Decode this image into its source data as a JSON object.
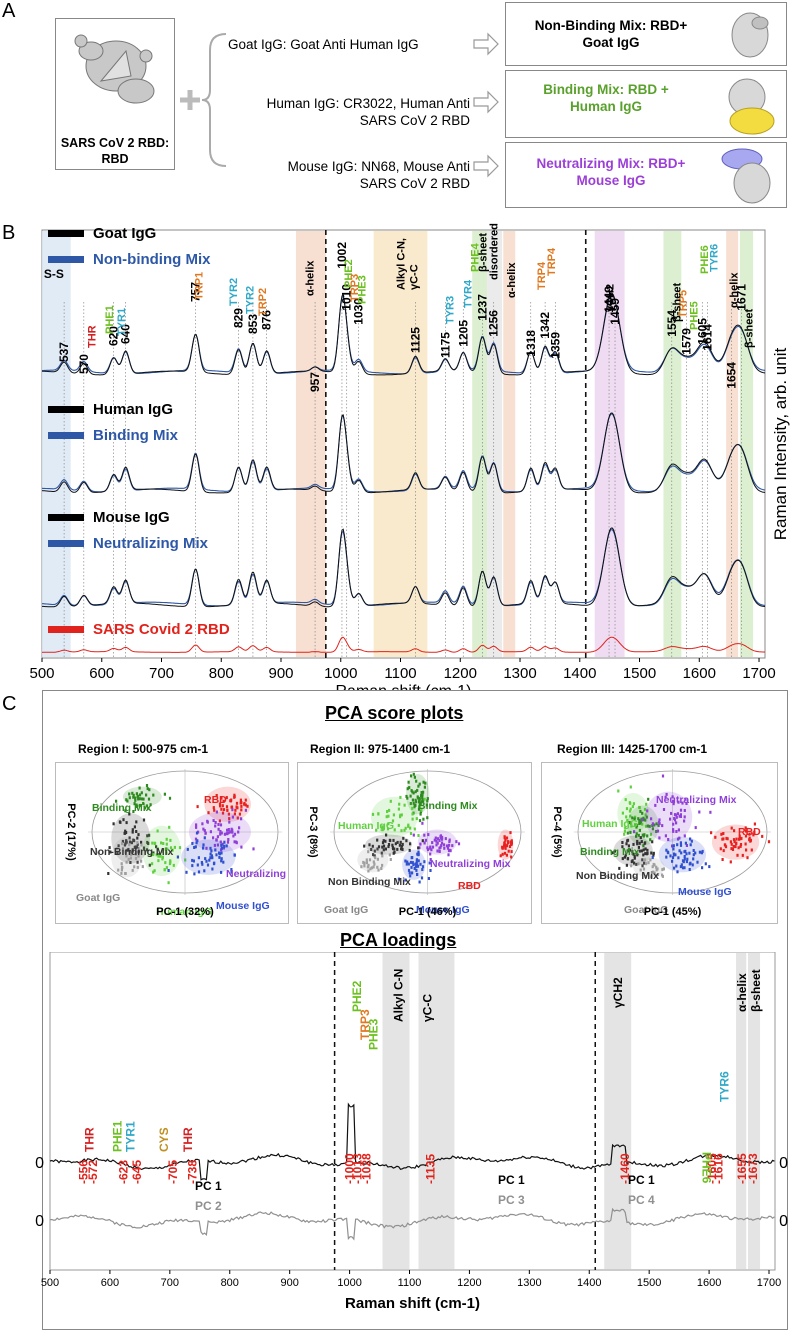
{
  "panels": {
    "a": "A",
    "b": "B",
    "c": "C"
  },
  "panel_a": {
    "rbd_label": [
      "SARS CoV 2 RBD:",
      "RBD"
    ],
    "iggs": [
      {
        "lines": [
          "Goat IgG: Goat Anti Human IgG"
        ]
      },
      {
        "lines": [
          "Human IgG: CR3022, Human Anti",
          "SARS CoV 2 RBD"
        ]
      },
      {
        "lines": [
          "Mouse IgG: NN68, Mouse Anti",
          "SARS CoV 2 RBD"
        ]
      }
    ],
    "mixes": [
      {
        "lines": [
          "Non-Binding Mix: RBD+",
          "Goat IgG"
        ],
        "color": "#000000"
      },
      {
        "lines": [
          "Binding Mix: RBD +",
          "Human IgG"
        ],
        "color": "#5aa02c"
      },
      {
        "lines": [
          "Neutralizing Mix: RBD+",
          "Mouse IgG"
        ],
        "color": "#9b3fd6"
      }
    ]
  },
  "chart_data": [
    {
      "type": "line",
      "id": "raman-spectra",
      "xlabel": "Raman shift (cm-1)",
      "ylabel": "Raman Intensity, arb. unit",
      "xlim": [
        500,
        1710
      ],
      "xticks": [
        500,
        600,
        700,
        800,
        900,
        1000,
        1100,
        1200,
        1300,
        1400,
        1500,
        1600,
        1700
      ],
      "legend": [
        {
          "label": "Goat IgG",
          "color": "#000000"
        },
        {
          "label": "Non-binding Mix",
          "color": "#2e58a6"
        },
        {
          "label": "Human IgG",
          "color": "#000000"
        },
        {
          "label": "Binding Mix",
          "color": "#2e58a6"
        },
        {
          "label": "Mouse IgG",
          "color": "#000000"
        },
        {
          "label": "Neutralizing Mix",
          "color": "#2e58a6"
        },
        {
          "label": "SARS Covid 2 RBD",
          "color": "#e0231c"
        }
      ],
      "peaks": [
        537,
        570,
        620,
        640,
        757,
        829,
        853,
        876,
        957,
        1002,
        1010,
        1030,
        1125,
        1175,
        1205,
        1237,
        1256,
        1318,
        1342,
        1359,
        1449,
        1459,
        1554,
        1579,
        1605,
        1614,
        1671,
        1654
      ],
      "peak_heights": [
        0.25,
        0.25,
        0.4,
        0.55,
        0.9,
        0.6,
        0.75,
        0.55,
        0.1,
        1.6,
        0.55,
        0.3,
        0.4,
        0.3,
        0.45,
        0.85,
        0.7,
        0.55,
        0.65,
        0.5,
        1.1,
        0.95,
        0.6,
        0.3,
        0.45,
        0.3,
        0.8,
        0.6
      ],
      "band_labels": [
        {
          "text": "S-S",
          "color": "#000000",
          "x": 530
        },
        {
          "text": "THR",
          "color": "#d42020",
          "x": 583
        },
        {
          "text": "PHE1",
          "color": "#6cc020",
          "x": 612
        },
        {
          "text": "TYR1",
          "color": "#30a8c8",
          "x": 632
        },
        {
          "text": "TRP1",
          "color": "#e07820",
          "x": 762
        },
        {
          "text": "TYR2",
          "color": "#30a8c8",
          "x": 820
        },
        {
          "text": "TYR2",
          "color": "#30a8c8",
          "x": 847
        },
        {
          "text": "TRP2",
          "color": "#e07820",
          "x": 868
        },
        {
          "text": "α-helix",
          "color": "#000000",
          "x": 948
        },
        {
          "text": "PHE2",
          "color": "#6cc020",
          "x": 1012
        },
        {
          "text": "TRP3",
          "color": "#e07820",
          "x": 1022
        },
        {
          "text": "PHE3",
          "color": "#6cc020",
          "x": 1035
        },
        {
          "text": "Alkyl C-N,",
          "color": "#000000",
          "x": 1100
        },
        {
          "text": "γC-C",
          "color": "#000000",
          "x": 1122
        },
        {
          "text": "TYR3",
          "color": "#30a8c8",
          "x": 1182
        },
        {
          "text": "TYR4",
          "color": "#30a8c8",
          "x": 1212
        },
        {
          "text": "PHE4",
          "color": "#6cc020",
          "x": 1224
        },
        {
          "text": "β-sheet",
          "color": "#000000",
          "x": 1237
        },
        {
          "text": "disordered",
          "color": "#000000",
          "x": 1256
        },
        {
          "text": "α-helix",
          "color": "#000000",
          "x": 1285
        },
        {
          "text": "TRP4",
          "color": "#e07820",
          "x": 1335
        },
        {
          "text": "TRP4",
          "color": "#e07820",
          "x": 1352
        },
        {
          "text": "γCH2",
          "color": "#000000",
          "x": 1450
        },
        {
          "text": "TRP5",
          "color": "#e07820",
          "x": 1572
        },
        {
          "text": "β-sheet",
          "color": "#000000",
          "x": 1562
        },
        {
          "text": "PHE5",
          "color": "#6cc020",
          "x": 1590
        },
        {
          "text": "PHE6",
          "color": "#6cc020",
          "x": 1608
        },
        {
          "text": "TYR6",
          "color": "#30a8c8",
          "x": 1624
        },
        {
          "text": "α-helix",
          "color": "#000000",
          "x": 1657
        },
        {
          "text": "β-sheet",
          "color": "#000000",
          "x": 1682
        }
      ],
      "shaded_regions": [
        {
          "from": 500,
          "to": 548,
          "color": "#dce8f4"
        },
        {
          "from": 925,
          "to": 975,
          "color": "#f6d9c9"
        },
        {
          "from": 1055,
          "to": 1145,
          "color": "#f9e6c4"
        },
        {
          "from": 1220,
          "to": 1245,
          "color": "#d6ecc8"
        },
        {
          "from": 1245,
          "to": 1270,
          "color": "#e8e8e8"
        },
        {
          "from": 1272,
          "to": 1292,
          "color": "#f6d9c9"
        },
        {
          "from": 1425,
          "to": 1475,
          "color": "#ecd6f0"
        },
        {
          "from": 1540,
          "to": 1570,
          "color": "#d6ecc8"
        },
        {
          "from": 1645,
          "to": 1665,
          "color": "#f6d9c9"
        },
        {
          "from": 1668,
          "to": 1690,
          "color": "#d6ecc8"
        }
      ],
      "dividers": [
        975,
        1410
      ]
    },
    {
      "type": "scatter",
      "id": "pca-region-1",
      "title": "Region I: 500-975 cm-1",
      "xlabel": "PC-1 (32%)",
      "ylabel": "PC-2 (17%)",
      "groups": [
        {
          "name": "Binding Mix",
          "color": "#2e8b20",
          "cx": 0.28,
          "cy": 0.22,
          "n": 40,
          "sx": 0.05,
          "sy": 0.04
        },
        {
          "name": "RBD",
          "color": "#e82020",
          "cx": 0.72,
          "cy": 0.28,
          "n": 45,
          "sx": 0.06,
          "sy": 0.07
        },
        {
          "name": "Non-Binding Mix",
          "color": "#333333",
          "cx": 0.22,
          "cy": 0.55,
          "n": 60,
          "sx": 0.05,
          "sy": 0.1
        },
        {
          "name": "Human IgG",
          "color": "#60d040",
          "cx": 0.38,
          "cy": 0.65,
          "n": 40,
          "sx": 0.05,
          "sy": 0.1
        },
        {
          "name": "Neutralizing Mix",
          "color": "#9040d8",
          "cx": 0.68,
          "cy": 0.5,
          "n": 60,
          "sx": 0.08,
          "sy": 0.08
        },
        {
          "name": "Mouse IgG",
          "color": "#3050d0",
          "cx": 0.62,
          "cy": 0.7,
          "n": 55,
          "sx": 0.07,
          "sy": 0.07
        },
        {
          "name": "Goat IgG",
          "color": "#a0a0a0",
          "cx": 0.2,
          "cy": 0.7,
          "n": 30,
          "sx": 0.04,
          "sy": 0.08
        }
      ]
    },
    {
      "type": "scatter",
      "id": "pca-region-2",
      "title": "Region II: 975-1400 cm-1",
      "xlabel": "PC-1 (46%)",
      "ylabel": "PC-3 (8%)",
      "groups": [
        {
          "name": "Binding Mix",
          "color": "#2e8b20",
          "cx": 0.45,
          "cy": 0.2,
          "n": 55,
          "sx": 0.03,
          "sy": 0.08
        },
        {
          "name": "Human IgG",
          "color": "#60d040",
          "cx": 0.33,
          "cy": 0.38,
          "n": 40,
          "sx": 0.06,
          "sy": 0.08
        },
        {
          "name": "Neutralizing Mix",
          "color": "#9040d8",
          "cx": 0.55,
          "cy": 0.58,
          "n": 50,
          "sx": 0.05,
          "sy": 0.05
        },
        {
          "name": "Non Binding Mix",
          "color": "#333333",
          "cx": 0.3,
          "cy": 0.6,
          "n": 45,
          "sx": 0.06,
          "sy": 0.04
        },
        {
          "name": "RBD",
          "color": "#e82020",
          "cx": 0.9,
          "cy": 0.6,
          "n": 30,
          "sx": 0.02,
          "sy": 0.06
        },
        {
          "name": "Mouse IgG",
          "color": "#3050d0",
          "cx": 0.43,
          "cy": 0.76,
          "n": 40,
          "sx": 0.03,
          "sy": 0.06
        },
        {
          "name": "Goat IgG",
          "color": "#a0a0a0",
          "cx": 0.22,
          "cy": 0.72,
          "n": 25,
          "sx": 0.04,
          "sy": 0.05
        }
      ]
    },
    {
      "type": "scatter",
      "id": "pca-region-3",
      "title": "Region III: 1425-1700 cm-1",
      "xlabel": "PC-1 (45%)",
      "ylabel": "PC-4 (5%)",
      "groups": [
        {
          "name": "Human IgG",
          "color": "#60d040",
          "cx": 0.3,
          "cy": 0.35,
          "n": 30,
          "sx": 0.04,
          "sy": 0.08
        },
        {
          "name": "Binding Mix",
          "color": "#2e8b20",
          "cx": 0.35,
          "cy": 0.45,
          "n": 40,
          "sx": 0.04,
          "sy": 0.08
        },
        {
          "name": "Neutralizing Mix",
          "color": "#9040d8",
          "cx": 0.48,
          "cy": 0.38,
          "n": 55,
          "sx": 0.06,
          "sy": 0.1
        },
        {
          "name": "RBD",
          "color": "#e82020",
          "cx": 0.82,
          "cy": 0.58,
          "n": 55,
          "sx": 0.06,
          "sy": 0.07
        },
        {
          "name": "Non Binding Mix",
          "color": "#333333",
          "cx": 0.3,
          "cy": 0.65,
          "n": 50,
          "sx": 0.05,
          "sy": 0.06
        },
        {
          "name": "Mouse IgG",
          "color": "#3050d0",
          "cx": 0.55,
          "cy": 0.68,
          "n": 55,
          "sx": 0.06,
          "sy": 0.07
        },
        {
          "name": "Goat IgG",
          "color": "#a0a0a0",
          "cx": 0.38,
          "cy": 0.78,
          "n": 25,
          "sx": 0.04,
          "sy": 0.04
        }
      ]
    },
    {
      "type": "line",
      "id": "pca-loadings",
      "title": "PCA loadings",
      "xlabel": "Raman shift (cm-1)",
      "xlim": [
        500,
        1710
      ],
      "xticks": [
        500,
        600,
        700,
        800,
        900,
        1000,
        1100,
        1200,
        1300,
        1400,
        1500,
        1600,
        1700
      ],
      "series": [
        {
          "name": "PC 1",
          "color": "#000000"
        },
        {
          "name": "PC 2",
          "color": "#909090"
        },
        {
          "name": "PC 1",
          "color": "#000000"
        },
        {
          "name": "PC 3",
          "color": "#909090"
        },
        {
          "name": "PC 1",
          "color": "#000000"
        },
        {
          "name": "PC 4",
          "color": "#909090"
        }
      ],
      "zero_label": "0",
      "peak_labels": [
        {
          "text": "556",
          "x": 556
        },
        {
          "text": "572",
          "x": 572
        },
        {
          "text": "623",
          "x": 623
        },
        {
          "text": "645",
          "x": 645
        },
        {
          "text": "705",
          "x": 705
        },
        {
          "text": "738",
          "x": 738
        },
        {
          "text": "1000",
          "x": 1000
        },
        {
          "text": "1013",
          "x": 1013
        },
        {
          "text": "1028",
          "x": 1028
        },
        {
          "text": "1135",
          "x": 1135
        },
        {
          "text": "1460",
          "x": 1460
        },
        {
          "text": "1605",
          "x": 1605
        },
        {
          "text": "1616",
          "x": 1616
        },
        {
          "text": "1655",
          "x": 1655
        },
        {
          "text": "1673",
          "x": 1673
        }
      ],
      "band_labels": [
        {
          "text": "THR",
          "color": "#d42020"
        },
        {
          "text": "PHE1",
          "color": "#6cc020"
        },
        {
          "text": "TYR1",
          "color": "#30a8c8"
        },
        {
          "text": "CYS",
          "color": "#c09020"
        },
        {
          "text": "THR",
          "color": "#d42020"
        },
        {
          "text": "PHE2",
          "color": "#6cc020"
        },
        {
          "text": "TRP3",
          "color": "#e07820"
        },
        {
          "text": "PHE3",
          "color": "#6cc020"
        },
        {
          "text": "Alkyl C-N",
          "color": "#000000"
        },
        {
          "text": "γC-C",
          "color": "#000000"
        },
        {
          "text": "γCH2",
          "color": "#000000"
        },
        {
          "text": "PHE6",
          "color": "#6cc020"
        },
        {
          "text": "TYR6",
          "color": "#30a8c8"
        },
        {
          "text": "α-helix",
          "color": "#000000"
        },
        {
          "text": "β-sheet",
          "color": "#000000"
        }
      ]
    }
  ],
  "panel_c": {
    "score_title": "PCA score plots",
    "loadings_title": "PCA loadings"
  }
}
